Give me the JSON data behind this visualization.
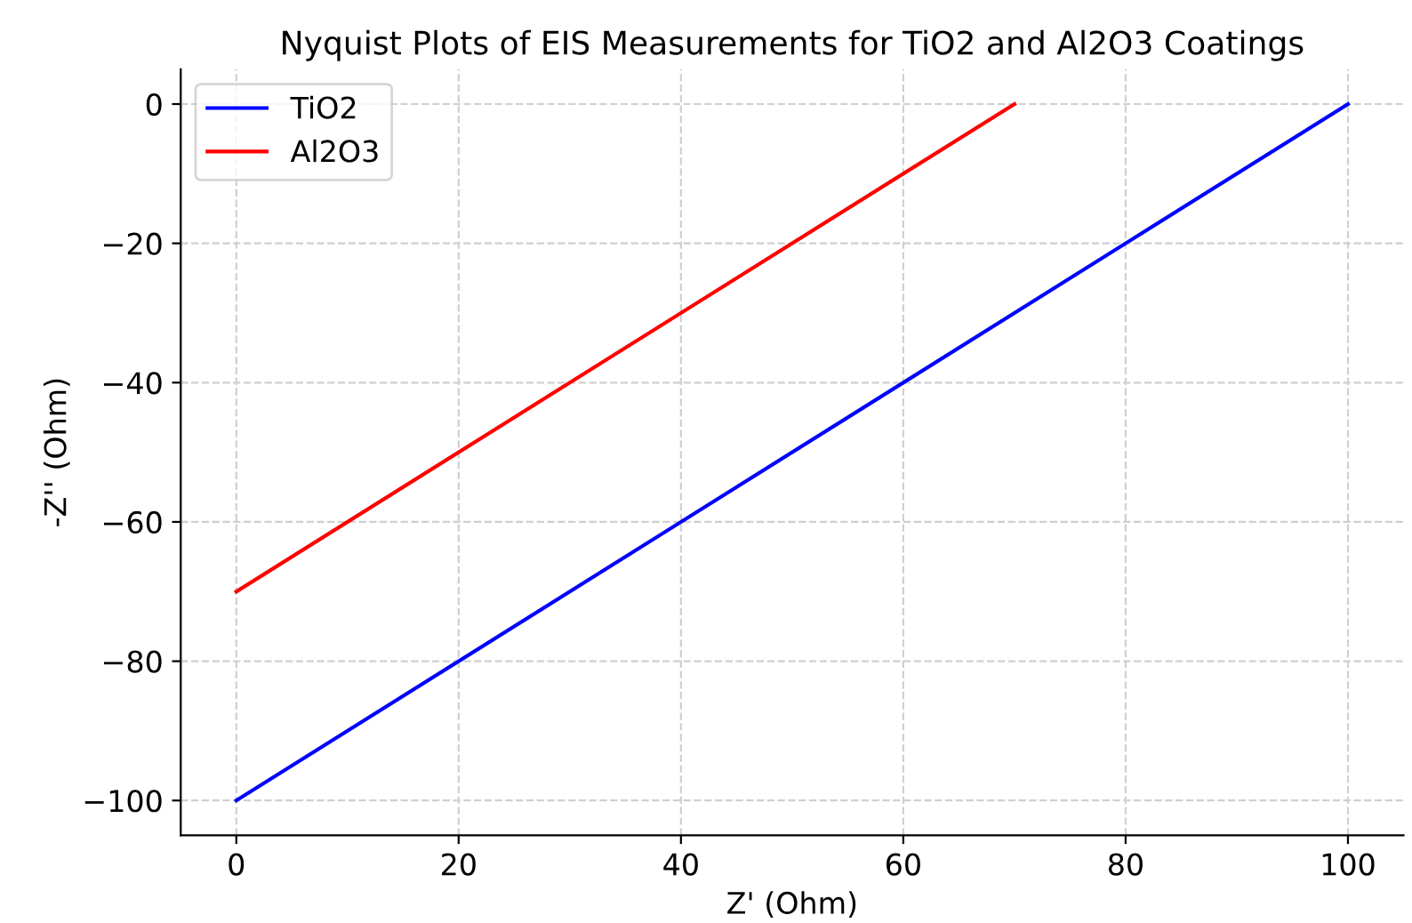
{
  "chart_data": {
    "type": "line",
    "title": "Nyquist Plots of EIS Measurements for TiO2 and Al2O3 Coatings",
    "xlabel": "Z' (Ohm)",
    "ylabel": "-Z'' (Ohm)",
    "series": [
      {
        "name": "TiO2",
        "color": "#0000ff",
        "x": [
          0,
          100
        ],
        "values": [
          -100,
          0
        ]
      },
      {
        "name": "Al2O3",
        "color": "#ff0000",
        "x": [
          0,
          70
        ],
        "values": [
          -70,
          0
        ]
      }
    ],
    "xlim": [
      -5,
      105
    ],
    "ylim": [
      -105,
      5
    ],
    "xticks": [
      0,
      20,
      40,
      60,
      80,
      100
    ],
    "yticks": [
      -100,
      -80,
      -60,
      -40,
      -20,
      0
    ],
    "grid": true,
    "legend": "top left",
    "line_style": "solid",
    "marker": "none"
  }
}
